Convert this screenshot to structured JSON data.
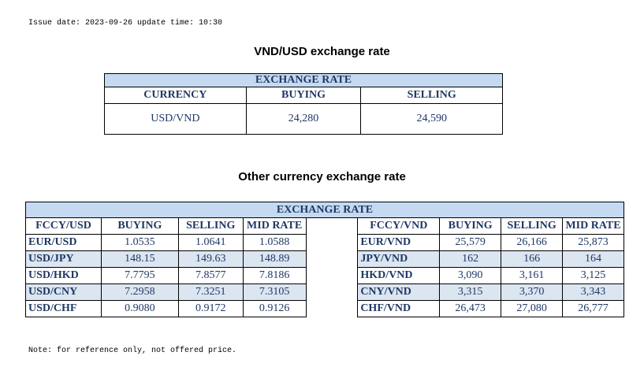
{
  "issue_line": "Issue date: 2023-09-26 update time: 10:30",
  "vnd_usd": {
    "heading": "VND/USD exchange rate",
    "table_title": "EXCHANGE RATE",
    "headers": [
      "CURRENCY",
      "BUYING",
      "SELLING"
    ],
    "row": {
      "currency": "USD/VND",
      "buying": "24,280",
      "selling": "24,590"
    }
  },
  "other": {
    "heading": "Other currency exchange rate",
    "table_title": "EXCHANGE  RATE",
    "left_headers": [
      "FCCY/USD",
      "BUYING",
      "SELLING",
      "MID RATE"
    ],
    "right_headers": [
      "FCCY/VND",
      "BUYING",
      "SELLING",
      "MID RATE"
    ],
    "rows": [
      {
        "left": [
          "EUR/USD",
          "1.0535",
          "1.0641",
          "1.0588"
        ],
        "right": [
          "EUR/VND",
          "25,579",
          "26,166",
          "25,873"
        ]
      },
      {
        "left": [
          "USD/JPY",
          "148.15",
          "149.63",
          "148.89"
        ],
        "right": [
          "JPY/VND",
          "162",
          "166",
          "164"
        ]
      },
      {
        "left": [
          "USD/HKD",
          "7.7795",
          "7.8577",
          "7.8186"
        ],
        "right": [
          "HKD/VND",
          "3,090",
          "3,161",
          "3,125"
        ]
      },
      {
        "left": [
          "USD/CNY",
          "7.2958",
          "7.3251",
          "7.3105"
        ],
        "right": [
          "CNY/VND",
          "3,315",
          "3,370",
          "3,343"
        ]
      },
      {
        "left": [
          "USD/CHF",
          "0.9080",
          "0.9172",
          "0.9126"
        ],
        "right": [
          "CHF/VND",
          "26,473",
          "27,080",
          "26,777"
        ]
      }
    ]
  },
  "note": "Note: for reference only, not offered price."
}
